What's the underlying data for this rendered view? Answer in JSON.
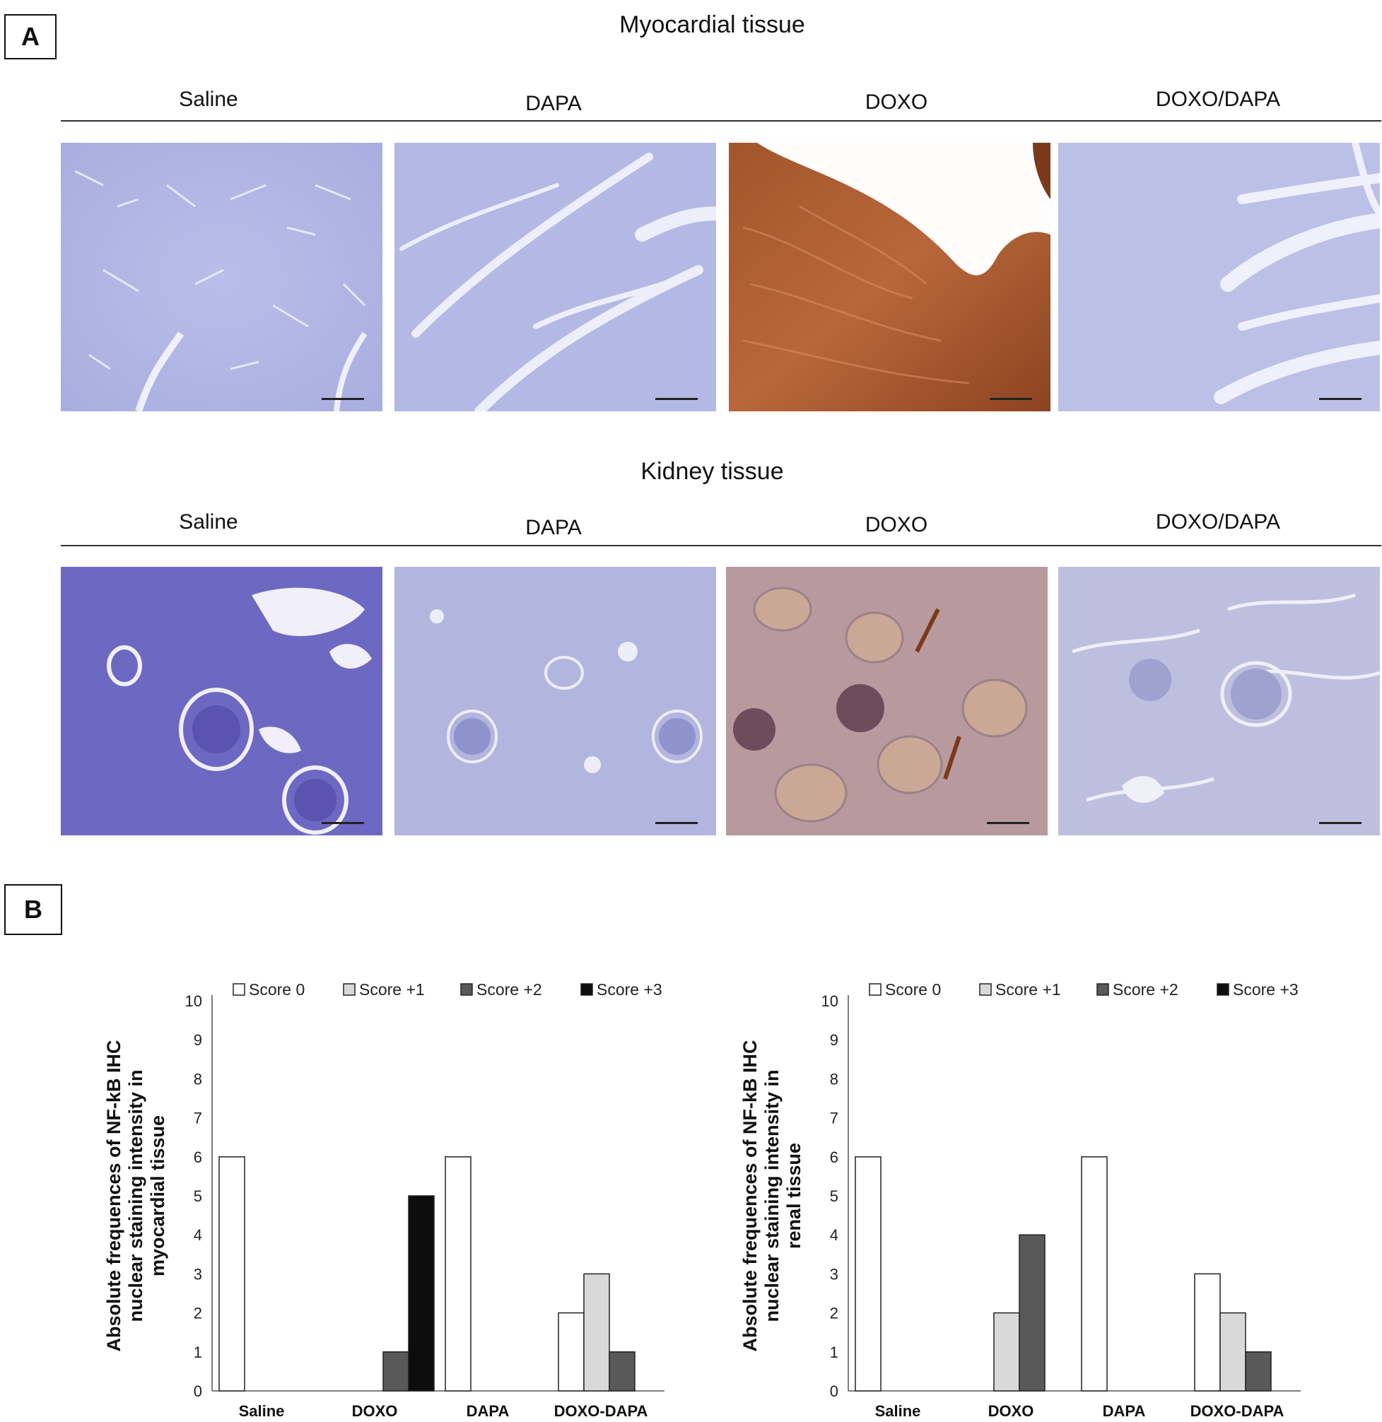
{
  "panel_a": {
    "label": "A",
    "myocardial_title": "Myocardial tissue",
    "kidney_title": "Kidney tissue",
    "groups": [
      "Saline",
      "DAPA",
      "DOXO",
      "DOXO/DAPA"
    ]
  },
  "panel_b": {
    "label": "B"
  },
  "chart_data": [
    {
      "type": "bar",
      "ylabel": [
        "Absolute frequences of NF-kB IHC",
        "nuclear staining intensity in",
        "myocardial tissue"
      ],
      "categories": [
        "Saline",
        "DOXO",
        "DAPA",
        "DOXO-DAPA"
      ],
      "ylim": [
        0,
        10
      ],
      "yticks": [
        "0",
        "1",
        "2",
        "3",
        "4",
        "5",
        "6",
        "7",
        "8",
        "9",
        "10"
      ],
      "legend_position": "top",
      "series": [
        {
          "name": "Score 0",
          "color": "#ffffff",
          "values": [
            6,
            0,
            6,
            2
          ]
        },
        {
          "name": "Score +1",
          "color": "#d9d9d9",
          "values": [
            0,
            0,
            0,
            3
          ]
        },
        {
          "name": "Score +2",
          "color": "#595959",
          "values": [
            0,
            1,
            0,
            1
          ]
        },
        {
          "name": "Score +3",
          "color": "#0d0d0d",
          "values": [
            0,
            5,
            0,
            0
          ]
        }
      ]
    },
    {
      "type": "bar",
      "ylabel": [
        "Absolute frequences of NF-kB IHC",
        "nuclear staining intensity in",
        "renal  tissue"
      ],
      "categories": [
        "Saline",
        "DOXO",
        "DAPA",
        "DOXO-DAPA"
      ],
      "ylim": [
        0,
        10
      ],
      "yticks": [
        "0",
        "1",
        "2",
        "3",
        "4",
        "5",
        "6",
        "7",
        "8",
        "9",
        "10"
      ],
      "legend_position": "top",
      "series": [
        {
          "name": "Score 0",
          "color": "#ffffff",
          "values": [
            6,
            0,
            6,
            3
          ]
        },
        {
          "name": "Score +1",
          "color": "#d9d9d9",
          "values": [
            0,
            2,
            0,
            2
          ]
        },
        {
          "name": "Score +2",
          "color": "#595959",
          "values": [
            0,
            4,
            0,
            1
          ]
        },
        {
          "name": "Score +3",
          "color": "#0d0d0d",
          "values": [
            0,
            0,
            0,
            0
          ]
        }
      ]
    }
  ]
}
